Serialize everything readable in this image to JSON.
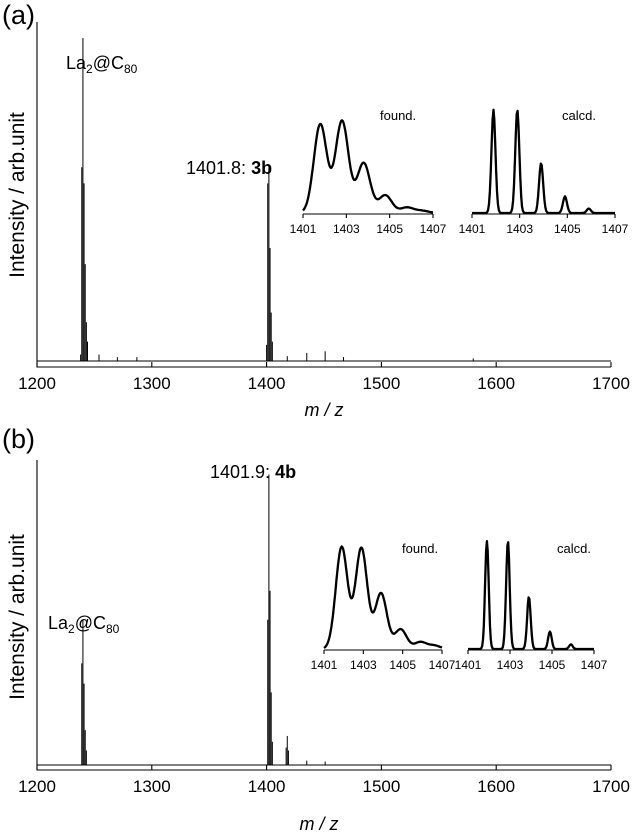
{
  "chart_data": [
    {
      "type": "line",
      "panel_label": "(a)",
      "xlabel": "m / z",
      "ylabel": "Intensity / arb.unit",
      "xlim": [
        1200,
        1700
      ],
      "ylim": [
        0,
        1.05
      ],
      "x_ticks": [
        1200,
        1300,
        1400,
        1500,
        1600,
        1700
      ],
      "peaks": [
        {
          "x": 1238,
          "y": 0.02
        },
        {
          "x": 1239,
          "y": 0.6
        },
        {
          "x": 1240,
          "y": 1.0
        },
        {
          "x": 1241,
          "y": 0.55
        },
        {
          "x": 1242,
          "y": 0.3
        },
        {
          "x": 1243,
          "y": 0.12
        },
        {
          "x": 1244,
          "y": 0.06
        },
        {
          "x": 1254,
          "y": 0.02
        },
        {
          "x": 1270,
          "y": 0.012
        },
        {
          "x": 1287,
          "y": 0.012
        },
        {
          "x": 1400,
          "y": 0.05
        },
        {
          "x": 1401,
          "y": 0.55
        },
        {
          "x": 1402,
          "y": 0.6
        },
        {
          "x": 1403,
          "y": 0.35
        },
        {
          "x": 1404,
          "y": 0.15
        },
        {
          "x": 1405,
          "y": 0.06
        },
        {
          "x": 1418,
          "y": 0.015
        },
        {
          "x": 1435,
          "y": 0.025
        },
        {
          "x": 1451,
          "y": 0.03
        },
        {
          "x": 1467,
          "y": 0.012
        },
        {
          "x": 1580,
          "y": 0.008
        }
      ],
      "annotations": [
        {
          "id": "la2c80",
          "parts": [
            "La",
            "2",
            "@C",
            "80"
          ],
          "x": 1240
        },
        {
          "id": "peak",
          "prefix": "1401.8: ",
          "bold": "3b",
          "x": 1401.8
        }
      ],
      "insets": [
        {
          "title": "found.",
          "xlim": [
            1401,
            1407
          ],
          "x_ticks": [
            1401,
            1403,
            1405,
            1407
          ],
          "style": "broad",
          "peaks": [
            {
              "x": 1401.8,
              "y": 0.8
            },
            {
              "x": 1402.8,
              "y": 0.83
            },
            {
              "x": 1403.8,
              "y": 0.45
            },
            {
              "x": 1404.8,
              "y": 0.16
            },
            {
              "x": 1405.8,
              "y": 0.05
            },
            {
              "x": 1406.5,
              "y": 0.02
            }
          ]
        },
        {
          "title": "calcd.",
          "xlim": [
            1401,
            1407
          ],
          "x_ticks": [
            1401,
            1403,
            1405,
            1407
          ],
          "style": "sharp",
          "peaks": [
            {
              "x": 1401.9,
              "y": 0.93
            },
            {
              "x": 1402.9,
              "y": 0.93
            },
            {
              "x": 1403.9,
              "y": 0.45
            },
            {
              "x": 1404.9,
              "y": 0.15
            },
            {
              "x": 1405.9,
              "y": 0.04
            }
          ]
        }
      ]
    },
    {
      "type": "line",
      "panel_label": "(b)",
      "xlabel": "m / z",
      "ylabel": "Intensity / arb.unit",
      "xlim": [
        1200,
        1700
      ],
      "ylim": [
        0,
        1.05
      ],
      "x_ticks": [
        1200,
        1300,
        1400,
        1500,
        1600,
        1700
      ],
      "peaks": [
        {
          "x": 1239,
          "y": 0.35
        },
        {
          "x": 1240,
          "y": 0.5
        },
        {
          "x": 1241,
          "y": 0.28
        },
        {
          "x": 1242,
          "y": 0.12
        },
        {
          "x": 1243,
          "y": 0.05
        },
        {
          "x": 1401,
          "y": 0.5
        },
        {
          "x": 1402,
          "y": 1.0
        },
        {
          "x": 1403,
          "y": 0.6
        },
        {
          "x": 1404,
          "y": 0.25
        },
        {
          "x": 1405,
          "y": 0.08
        },
        {
          "x": 1417,
          "y": 0.06
        },
        {
          "x": 1418,
          "y": 0.1
        },
        {
          "x": 1419,
          "y": 0.05
        },
        {
          "x": 1435,
          "y": 0.015
        },
        {
          "x": 1451,
          "y": 0.012
        }
      ],
      "annotations": [
        {
          "id": "la2c80",
          "parts": [
            "La",
            "2",
            "@C",
            "80"
          ],
          "x": 1240
        },
        {
          "id": "peak",
          "prefix": "1401.9: ",
          "bold": "4b",
          "x": 1401.9
        }
      ],
      "insets": [
        {
          "title": "found.",
          "xlim": [
            1401,
            1407
          ],
          "x_ticks": [
            1401,
            1403,
            1405,
            1407
          ],
          "style": "broad",
          "peaks": [
            {
              "x": 1401.9,
              "y": 0.88
            },
            {
              "x": 1402.9,
              "y": 0.87
            },
            {
              "x": 1403.9,
              "y": 0.48
            },
            {
              "x": 1404.9,
              "y": 0.17
            },
            {
              "x": 1405.9,
              "y": 0.06
            },
            {
              "x": 1406.6,
              "y": 0.03
            }
          ]
        },
        {
          "title": "calcd.",
          "xlim": [
            1401,
            1407
          ],
          "x_ticks": [
            1401,
            1403,
            1405,
            1407
          ],
          "style": "sharp",
          "peaks": [
            {
              "x": 1401.9,
              "y": 0.93
            },
            {
              "x": 1402.9,
              "y": 0.93
            },
            {
              "x": 1403.9,
              "y": 0.45
            },
            {
              "x": 1404.9,
              "y": 0.15
            },
            {
              "x": 1405.9,
              "y": 0.04
            }
          ]
        }
      ]
    }
  ]
}
